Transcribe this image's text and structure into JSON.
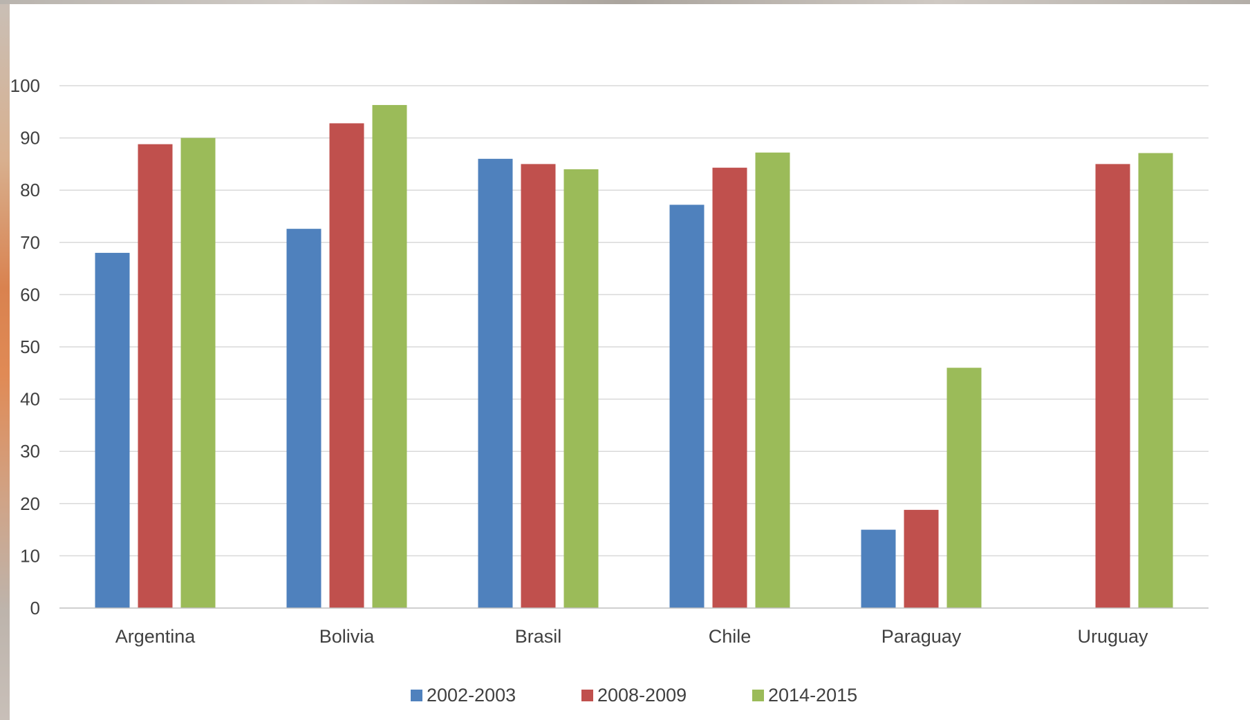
{
  "chart_data": {
    "type": "bar",
    "title": "",
    "xlabel": "",
    "ylabel": "",
    "categories": [
      "Argentina",
      "Bolivia",
      "Brasil",
      "Chile",
      "Paraguay",
      "Uruguay"
    ],
    "series": [
      {
        "name": "2002-2003",
        "color": "#4f81bd",
        "values": [
          68,
          72.6,
          86,
          77.2,
          15,
          null
        ]
      },
      {
        "name": "2008-2009",
        "color": "#c0504d",
        "values": [
          88.8,
          92.8,
          85,
          84.3,
          18.8,
          85
        ]
      },
      {
        "name": "2014-2015",
        "color": "#9bbb59",
        "values": [
          90,
          96.3,
          84,
          87.2,
          46,
          87.1
        ]
      }
    ],
    "ylim": [
      0,
      100
    ],
    "yticks": [
      0,
      10,
      20,
      30,
      40,
      50,
      60,
      70,
      80,
      90,
      100
    ],
    "grid": true,
    "legend": "bottom"
  }
}
